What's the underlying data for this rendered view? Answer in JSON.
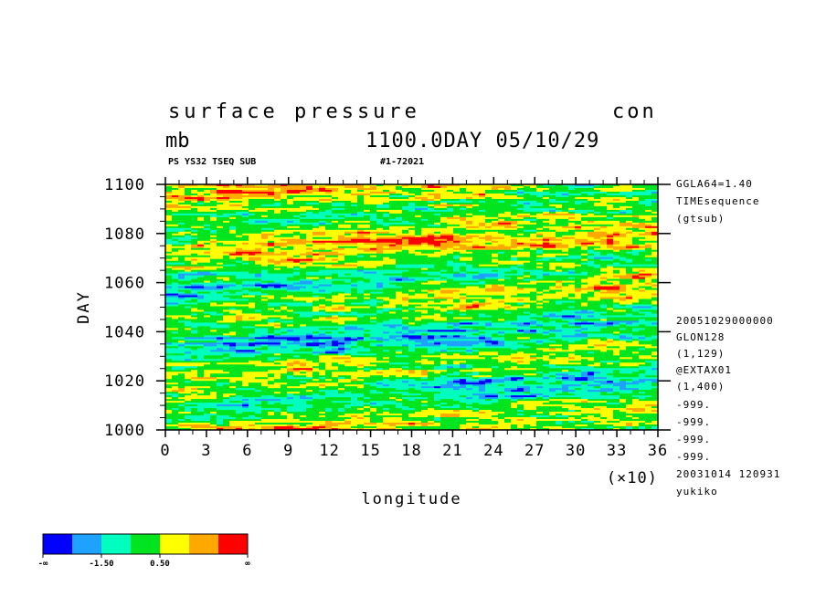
{
  "header": {
    "title": "surface pressure",
    "kind": "con",
    "units": "mb",
    "time_label": "1100.0DAY 05/10/29",
    "sub_left": "PS YS32 TSEQ SUB",
    "sub_right": "#1-72021"
  },
  "side_info": {
    "top": [
      "GGLA64=1.40",
      "TIMEsequence",
      "(gtsub)"
    ],
    "bottom": [
      "20051029000000",
      "GLON128",
      "(1,129)",
      "@EXTAX01",
      "(1,400)",
      "-999.",
      "-999.",
      "-999.",
      "-999.",
      "20031014 120931",
      "yukiko"
    ]
  },
  "colorbar": {
    "colors": [
      "#0000ff",
      "#1fa2ff",
      "#00ffbf",
      "#00e51f",
      "#ffff00",
      "#ffa800",
      "#ff0000"
    ],
    "labels": [
      "-∞",
      "-1.50",
      "0.50",
      "∞"
    ]
  },
  "chart_data": {
    "type": "heatmap",
    "title": "surface pressure",
    "xlabel": "longitude",
    "ylabel": "DAY",
    "x_multiplier_label": "(×10)",
    "xlim": [
      0,
      36
    ],
    "ylim": [
      1000,
      1100
    ],
    "x_ticks": [
      "0",
      "3",
      "6",
      "9",
      "12",
      "15",
      "18",
      "21",
      "24",
      "27",
      "30",
      "33",
      "36"
    ],
    "y_ticks": [
      "1000",
      "1020",
      "1040",
      "1060",
      "1080",
      "1100"
    ],
    "levels": [
      "-∞",
      "-1.50",
      "0.50",
      "∞"
    ]
  }
}
